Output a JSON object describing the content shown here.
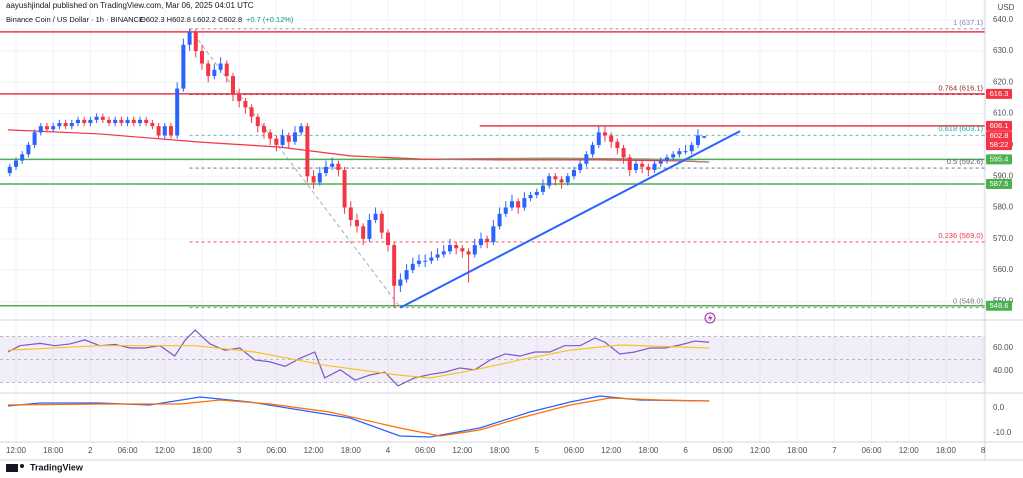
{
  "header": {
    "publisher": "aayushjindal published on TradingView.com, Mar 06, 2025 04:01 UTC",
    "symbol": "Binance Coin / US Dollar · 1h · BINANCE",
    "ohlc": "O602.3 H602.8 L602.2 C602.8",
    "change": "+0.7 (+0.12%)"
  },
  "chart_data": {
    "type": "candlestick",
    "currency": "USD",
    "up_color": "#2962ff",
    "down_color": "#f23645",
    "x": [
      11,
      12,
      13,
      14,
      15,
      16,
      17,
      18,
      19,
      20,
      21,
      22,
      23,
      24,
      25,
      26,
      27,
      28,
      29,
      30,
      31,
      32,
      33,
      34,
      35,
      36,
      37,
      38,
      39,
      40,
      41,
      42,
      43,
      44,
      45,
      46,
      47,
      48,
      49,
      50,
      51,
      52,
      53,
      54,
      55,
      56,
      57,
      58,
      59,
      60,
      61,
      62,
      63,
      64,
      65,
      66,
      67,
      68,
      69,
      70,
      71,
      72,
      73,
      74,
      75,
      76,
      77,
      78,
      79,
      80,
      81,
      82,
      83,
      84,
      85,
      86,
      87,
      88,
      89,
      90,
      91,
      92,
      93,
      94,
      95,
      96,
      97,
      98,
      99,
      100,
      101,
      102,
      103,
      104,
      105,
      106,
      107,
      108,
      109,
      110,
      111,
      112,
      113,
      114,
      115,
      116,
      117,
      118,
      119,
      120,
      121,
      122,
      123
    ],
    "ohlc": [
      [
        591,
        594,
        590,
        593
      ],
      [
        593,
        596,
        592,
        595
      ],
      [
        595,
        598,
        594,
        597
      ],
      [
        597,
        601,
        596,
        600
      ],
      [
        600,
        605,
        599,
        604
      ],
      [
        604,
        607,
        603,
        606
      ],
      [
        606,
        607,
        604,
        605
      ],
      [
        605,
        607,
        604,
        606
      ],
      [
        606,
        608,
        605,
        607
      ],
      [
        607,
        608,
        605,
        606
      ],
      [
        606,
        608,
        605,
        607
      ],
      [
        607,
        609,
        606,
        608
      ],
      [
        608,
        609,
        606,
        607
      ],
      [
        607,
        609,
        606,
        608
      ],
      [
        608,
        610,
        607,
        609
      ],
      [
        609,
        610,
        607,
        608
      ],
      [
        608,
        609,
        606,
        607
      ],
      [
        607,
        609,
        606,
        608
      ],
      [
        608,
        609,
        606,
        607
      ],
      [
        607,
        609,
        606,
        608
      ],
      [
        608,
        609,
        606,
        607
      ],
      [
        607,
        609,
        606,
        608
      ],
      [
        608,
        609,
        606,
        607
      ],
      [
        607,
        608,
        605,
        606
      ],
      [
        606,
        607,
        602,
        603
      ],
      [
        603,
        607,
        602,
        606
      ],
      [
        606,
        607,
        602,
        603
      ],
      [
        603,
        620,
        602,
        618
      ],
      [
        618,
        634,
        617,
        632
      ],
      [
        632,
        637.1,
        630,
        636
      ],
      [
        636,
        637,
        628,
        630
      ],
      [
        630,
        632,
        624,
        626
      ],
      [
        626,
        627,
        620,
        622
      ],
      [
        622,
        626,
        621,
        624
      ],
      [
        624,
        628,
        623,
        626
      ],
      [
        626,
        627,
        620,
        622
      ],
      [
        622,
        623,
        614,
        616
      ],
      [
        616,
        618,
        612,
        614
      ],
      [
        614,
        615,
        610,
        612
      ],
      [
        612,
        613,
        607,
        609
      ],
      [
        609,
        610,
        604,
        606
      ],
      [
        606,
        607,
        602,
        604
      ],
      [
        604,
        605,
        600,
        602
      ],
      [
        602,
        603,
        598,
        600
      ],
      [
        600,
        605,
        599,
        603
      ],
      [
        603,
        604,
        599,
        601
      ],
      [
        601,
        606,
        600,
        604
      ],
      [
        604,
        607,
        603,
        606
      ],
      [
        606,
        607,
        588,
        590
      ],
      [
        590,
        592,
        586,
        588
      ],
      [
        588,
        593,
        587,
        591
      ],
      [
        591,
        595,
        590,
        593
      ],
      [
        593,
        596,
        592,
        594
      ],
      [
        594,
        595,
        590,
        592
      ],
      [
        592,
        593,
        578,
        580
      ],
      [
        580,
        582,
        574,
        576
      ],
      [
        576,
        578,
        572,
        574
      ],
      [
        574,
        575,
        568,
        570
      ],
      [
        570,
        578,
        569,
        576
      ],
      [
        576,
        580,
        575,
        578
      ],
      [
        578,
        579,
        570,
        572
      ],
      [
        572,
        573,
        566,
        568
      ],
      [
        568,
        569,
        548,
        555
      ],
      [
        555,
        559,
        553,
        557
      ],
      [
        557,
        562,
        556,
        560
      ],
      [
        560,
        564,
        559,
        562
      ],
      [
        562,
        565,
        561,
        563
      ],
      [
        563,
        565,
        561,
        563
      ],
      [
        563,
        566,
        562,
        564
      ],
      [
        564,
        567,
        563,
        565
      ],
      [
        565,
        568,
        564,
        566
      ],
      [
        566,
        570,
        565,
        568
      ],
      [
        568,
        569,
        565,
        567
      ],
      [
        567,
        568,
        564,
        566
      ],
      [
        566,
        567,
        556,
        565
      ],
      [
        565,
        570,
        564,
        568
      ],
      [
        568,
        572,
        567,
        570
      ],
      [
        570,
        571,
        567,
        569
      ],
      [
        569,
        576,
        568,
        574
      ],
      [
        574,
        580,
        573,
        578
      ],
      [
        578,
        582,
        577,
        580
      ],
      [
        580,
        584,
        579,
        582
      ],
      [
        582,
        583,
        578,
        580
      ],
      [
        580,
        585,
        579,
        583
      ],
      [
        583,
        585,
        582,
        584
      ],
      [
        584,
        586,
        583,
        585
      ],
      [
        585,
        589,
        584,
        587
      ],
      [
        587,
        591,
        586,
        590
      ],
      [
        590,
        591,
        587,
        589
      ],
      [
        589,
        590,
        586,
        588
      ],
      [
        588,
        591,
        587,
        590
      ],
      [
        590,
        593,
        589,
        592
      ],
      [
        592,
        595,
        591,
        594
      ],
      [
        594,
        598,
        593,
        597
      ],
      [
        597,
        601,
        596,
        600
      ],
      [
        600,
        606,
        599,
        604
      ],
      [
        604,
        606,
        601,
        603
      ],
      [
        603,
        604,
        599,
        601
      ],
      [
        601,
        602,
        597,
        599
      ],
      [
        599,
        600,
        594,
        596
      ],
      [
        596,
        597,
        590,
        592
      ],
      [
        592,
        595,
        591,
        594
      ],
      [
        594,
        595,
        591,
        593
      ],
      [
        593,
        594,
        590,
        592
      ],
      [
        592,
        595,
        591,
        594
      ],
      [
        594,
        596,
        593,
        595
      ],
      [
        595,
        597,
        594,
        596
      ],
      [
        596,
        598,
        595,
        597
      ],
      [
        597,
        599,
        596,
        598
      ],
      [
        598,
        600,
        597,
        598
      ],
      [
        598,
        601,
        597,
        600
      ],
      [
        600,
        605,
        599,
        603
      ],
      [
        602.3,
        602.8,
        602.2,
        602.8
      ]
    ],
    "xlim": [
      9.42,
      168.3
    ],
    "xticks": [
      {
        "value": 12,
        "label": "12:00"
      },
      {
        "value": 18,
        "label": "18:00"
      },
      {
        "value": 24,
        "label": "2"
      },
      {
        "value": 30,
        "label": "06:00"
      },
      {
        "value": 36,
        "label": "12:00"
      },
      {
        "value": 42,
        "label": "18:00"
      },
      {
        "value": 48,
        "label": "3"
      },
      {
        "value": 54,
        "label": "06:00"
      },
      {
        "value": 60,
        "label": "12:00"
      },
      {
        "value": 66,
        "label": "18:00"
      },
      {
        "value": 72,
        "label": "4"
      },
      {
        "value": 78,
        "label": "06:00"
      },
      {
        "value": 84,
        "label": "12:00"
      },
      {
        "value": 90,
        "label": "18:00"
      },
      {
        "value": 96,
        "label": "5"
      },
      {
        "value": 102,
        "label": "06:00"
      },
      {
        "value": 108,
        "label": "12:00"
      },
      {
        "value": 114,
        "label": "18:00"
      },
      {
        "value": 120,
        "label": "6"
      },
      {
        "value": 126,
        "label": "06:00"
      },
      {
        "value": 132,
        "label": "12:00"
      },
      {
        "value": 138,
        "label": "18:00"
      },
      {
        "value": 144,
        "label": "7"
      },
      {
        "value": 150,
        "label": "06:00"
      },
      {
        "value": 156,
        "label": "12:00"
      },
      {
        "value": 162,
        "label": "18:00"
      },
      {
        "value": 168,
        "label": "8"
      }
    ],
    "ylim": [
      544.7,
      646.3
    ],
    "yticks": [
      {
        "value": 550,
        "label": "550.0"
      },
      {
        "value": 560,
        "label": "560.0"
      },
      {
        "value": 570,
        "label": "570.0"
      },
      {
        "value": 580,
        "label": "580.0"
      },
      {
        "value": 590,
        "label": "590.0"
      },
      {
        "value": 600,
        "label": "600.0"
      },
      {
        "value": 610,
        "label": "610.0"
      },
      {
        "value": 620,
        "label": "620.0"
      },
      {
        "value": 630,
        "label": "630.0"
      },
      {
        "value": 640,
        "label": "640.0"
      }
    ],
    "moving_averages": [
      {
        "color": "#f23645",
        "x": [
          10.7,
          25.5,
          41.7,
          54.6,
          65.9,
          77.2,
          90.1,
          106.2,
          119.1,
          123.8
        ],
        "values": [
          604.8,
          603.5,
          600.9,
          599.3,
          596.5,
          595.5,
          595.2,
          595.2,
          594.9,
          594.5
        ]
      },
      {
        "color": "#a1887f",
        "x": [
          80.4,
          98.1,
          114.3,
          123.8
        ],
        "values": [
          595.5,
          595.8,
          595.5,
          594.5
        ]
      }
    ],
    "levels": [
      {
        "value": 636.1,
        "color": "#f23645",
        "tag": false
      },
      {
        "value": 616.3,
        "color": "#f23645",
        "tag": true
      },
      {
        "value": 606.1,
        "color": "#f23645",
        "tag": true,
        "from": 86.8
      },
      {
        "value": 595.4,
        "color": "#4caf50",
        "tag": true
      },
      {
        "value": 587.5,
        "color": "#4caf50",
        "tag": true
      },
      {
        "value": 548.6,
        "color": "#4caf50",
        "tag": true
      }
    ],
    "fib_levels": [
      {
        "value": 637.1,
        "label": "1 (637.1)",
        "color": "#7e8bb7"
      },
      {
        "value": 616.1,
        "label": "0.764 (616.1)",
        "color": "#8d2a2a"
      },
      {
        "value": 603.1,
        "label": "0.618 (603.1)",
        "color": "#26a69a"
      },
      {
        "value": 592.6,
        "label": "0.5 (592.6)",
        "color": "#5d606b"
      },
      {
        "value": 569,
        "label": "0.236 (569.0)",
        "color": "#f23645"
      },
      {
        "value": 548,
        "label": "0 (548.0)",
        "color": "#787b86"
      }
    ],
    "fib_swing": {
      "x": [
        40,
        74
      ],
      "values": [
        637.1,
        548
      ]
    },
    "trendline": {
      "color": "#2962ff",
      "x": [
        74,
        128.8
      ],
      "values": [
        548,
        604.4
      ]
    },
    "current_price": {
      "value": 602.8,
      "countdown": "58:22",
      "color": "#f23645"
    },
    "rsi": {
      "ylim": [
        21.7,
        82.6
      ],
      "yticks": [
        {
          "value": 40,
          "label": "40.00"
        },
        {
          "value": 60,
          "label": "60.00"
        }
      ],
      "band": [
        30,
        70
      ],
      "levels": [
        30,
        50,
        70
      ],
      "band_color": "#7e57c2",
      "series": [
        {
          "color": "#7e57c2",
          "x": [
            10.7,
            12.6,
            15.9,
            18.3,
            20.7,
            23.1,
            25.5,
            28,
            30.4,
            32.8,
            35.2,
            37.6,
            39.3,
            40.9,
            43.3,
            45.7,
            48.1,
            50.5,
            52.9,
            55.4,
            57.8,
            60.2,
            61.8,
            64.3,
            66.7,
            69.1,
            71.5,
            73.6,
            76.3,
            78.8,
            81.2,
            83.6,
            86,
            88.5,
            90.9,
            93.3,
            95.7,
            98.1,
            100.5,
            103,
            105.4,
            107,
            109.4,
            111.8,
            114.3,
            116.7,
            119.1,
            121.5,
            123.8
          ],
          "values": [
            56.5,
            62,
            64,
            62,
            63.5,
            67,
            62,
            63,
            60,
            60,
            62,
            53,
            67,
            75.6,
            63.5,
            58,
            60,
            49.6,
            48,
            44,
            51,
            56.5,
            34,
            41,
            32,
            36.5,
            39,
            27,
            34,
            37,
            39,
            42.6,
            41,
            49.6,
            54.8,
            53,
            56.5,
            56.5,
            62,
            62,
            68.7,
            65,
            54.8,
            56.5,
            60,
            60,
            62.6,
            66,
            65
          ]
        },
        {
          "color": "#f7c325",
          "x": [
            10.7,
            25.5,
            40.9,
            50.5,
            61.8,
            73.6,
            78.8,
            86,
            93.3,
            101.3,
            109.4,
            123.8
          ],
          "values": [
            58,
            62,
            62,
            56.5,
            45,
            36.5,
            33.9,
            41,
            49.6,
            58,
            62.6,
            60
          ]
        }
      ]
    },
    "macd": {
      "ylim": [
        -13.6,
        5.2
      ],
      "yticks": [
        {
          "value": -10,
          "label": "-10.0"
        },
        {
          "value": 0,
          "label": "0.0"
        }
      ],
      "series": [
        {
          "color": "#2962ff",
          "x": [
            10.7,
            15.9,
            25.5,
            33.6,
            41.7,
            49.7,
            57.8,
            65.9,
            73.9,
            78.8,
            86.8,
            94.9,
            101.4,
            106.2,
            112.6,
            123.8
          ],
          "values": [
            0.8,
            2,
            2,
            1.2,
            4.4,
            2.4,
            -0.8,
            -4,
            -11.2,
            -11.6,
            -8,
            -1.6,
            2.4,
            4.8,
            3.2,
            2.8
          ]
        },
        {
          "color": "#ff6d00",
          "x": [
            10.7,
            25.5,
            38.5,
            44.9,
            53,
            62.6,
            73.9,
            80.4,
            86.8,
            93.3,
            101.4,
            107.8,
            115.9,
            123.8
          ],
          "values": [
            1.2,
            1.6,
            1.6,
            3.2,
            1.6,
            -1.6,
            -8,
            -11.2,
            -8.8,
            -4,
            1.2,
            4,
            3.2,
            2.8
          ]
        }
      ]
    }
  },
  "footer": {
    "brand": "TradingView"
  }
}
